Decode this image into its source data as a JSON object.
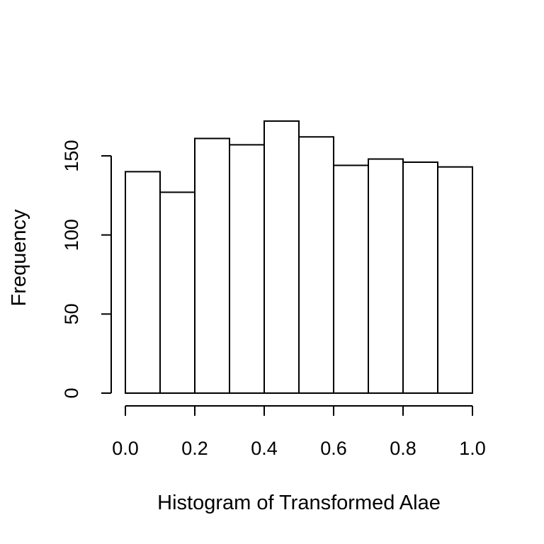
{
  "chart_data": {
    "type": "bar",
    "title": "",
    "xlabel": "Histogram of Transformed Alae",
    "ylabel": "Frequency",
    "bins": [
      {
        "from": 0.0,
        "to": 0.1,
        "value": 140
      },
      {
        "from": 0.1,
        "to": 0.2,
        "value": 127
      },
      {
        "from": 0.2,
        "to": 0.3,
        "value": 161
      },
      {
        "from": 0.3,
        "to": 0.4,
        "value": 157
      },
      {
        "from": 0.4,
        "to": 0.5,
        "value": 172
      },
      {
        "from": 0.5,
        "to": 0.6,
        "value": 162
      },
      {
        "from": 0.6,
        "to": 0.7,
        "value": 144
      },
      {
        "from": 0.7,
        "to": 0.8,
        "value": 148
      },
      {
        "from": 0.8,
        "to": 0.9,
        "value": 146
      },
      {
        "from": 0.9,
        "to": 1.0,
        "value": 143
      }
    ],
    "xlim": [
      0,
      1
    ],
    "ylim": [
      0,
      150
    ],
    "x_ticks": [
      "0.0",
      "0.2",
      "0.4",
      "0.6",
      "0.8",
      "1.0"
    ],
    "x_tick_values": [
      0.0,
      0.2,
      0.4,
      0.6,
      0.8,
      1.0
    ],
    "y_ticks": [
      "0",
      "50",
      "100",
      "150"
    ],
    "y_tick_values": [
      0,
      50,
      100,
      150
    ],
    "grid": false,
    "colors": {
      "bar_fill": "#ffffff",
      "bar_stroke": "#000000"
    }
  }
}
